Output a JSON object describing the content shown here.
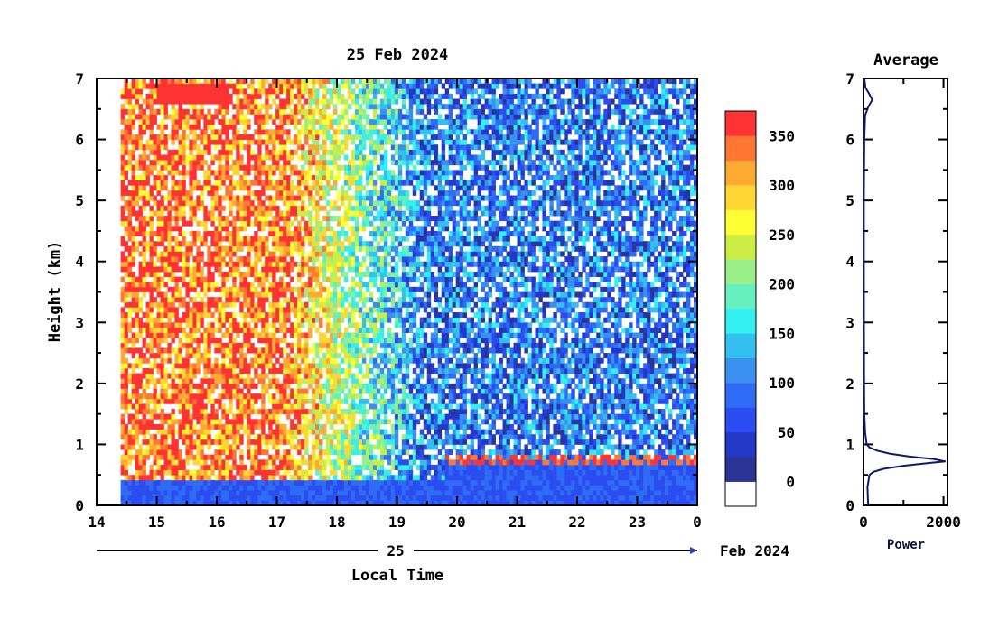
{
  "chart_data": [
    {
      "type": "heatmap",
      "title": "25 Feb 2024",
      "xlabel": "Local Time",
      "ylabel": "Height (km)",
      "x_ticks": [
        "14",
        "15",
        "16",
        "17",
        "18",
        "19",
        "20",
        "21",
        "22",
        "23",
        "0"
      ],
      "y_ticks": [
        "0",
        "1",
        "2",
        "3",
        "4",
        "5",
        "6",
        "7"
      ],
      "xlim": [
        14,
        24
      ],
      "ylim": [
        0,
        7
      ],
      "date_axis": {
        "day_label": "25",
        "month_label": "Feb 2024"
      },
      "colorbar": {
        "tick_labels": [
          "0",
          "50",
          "100",
          "150",
          "200",
          "250",
          "300",
          "350"
        ],
        "range": [
          -25,
          375
        ],
        "colors": [
          "#ffffff",
          "#2a3494",
          "#2438c8",
          "#2b4cf0",
          "#2f6cf5",
          "#3a90f0",
          "#33c0ee",
          "#33f0f0",
          "#66f0c0",
          "#99ee88",
          "#ccee44",
          "#ffff33",
          "#ffd633",
          "#ffaa33",
          "#ff7733",
          "#ff3333"
        ]
      },
      "features": {
        "data_start_hour": 14.4,
        "boundary_layer_top_km": 0.8,
        "boundary_layer_start_hour": 19.8,
        "upper_cloud_height_km": 6.7
      }
    },
    {
      "type": "line",
      "title": "Average",
      "xlabel": "Power",
      "x_ticks": [
        "0",
        "2000"
      ],
      "y_ticks": [
        "0",
        "1",
        "2",
        "3",
        "4",
        "5",
        "6",
        "7"
      ],
      "xlim": [
        0,
        2100
      ],
      "ylim": [
        0,
        7
      ],
      "series": [
        {
          "height_km": [
            0.0,
            0.1,
            0.3,
            0.5,
            0.55,
            0.6,
            0.65,
            0.7,
            0.72,
            0.76,
            0.8,
            0.85,
            0.9,
            0.95,
            1.0,
            1.2,
            1.5,
            2.0,
            3.0,
            4.0,
            5.0,
            6.0,
            6.4,
            6.55,
            6.65,
            6.75,
            6.85,
            7.0
          ],
          "power": [
            120,
            110,
            100,
            150,
            250,
            500,
            1000,
            1700,
            2050,
            1750,
            1150,
            650,
            330,
            150,
            80,
            40,
            20,
            15,
            12,
            10,
            10,
            20,
            40,
            130,
            220,
            140,
            50,
            20
          ]
        }
      ]
    }
  ]
}
